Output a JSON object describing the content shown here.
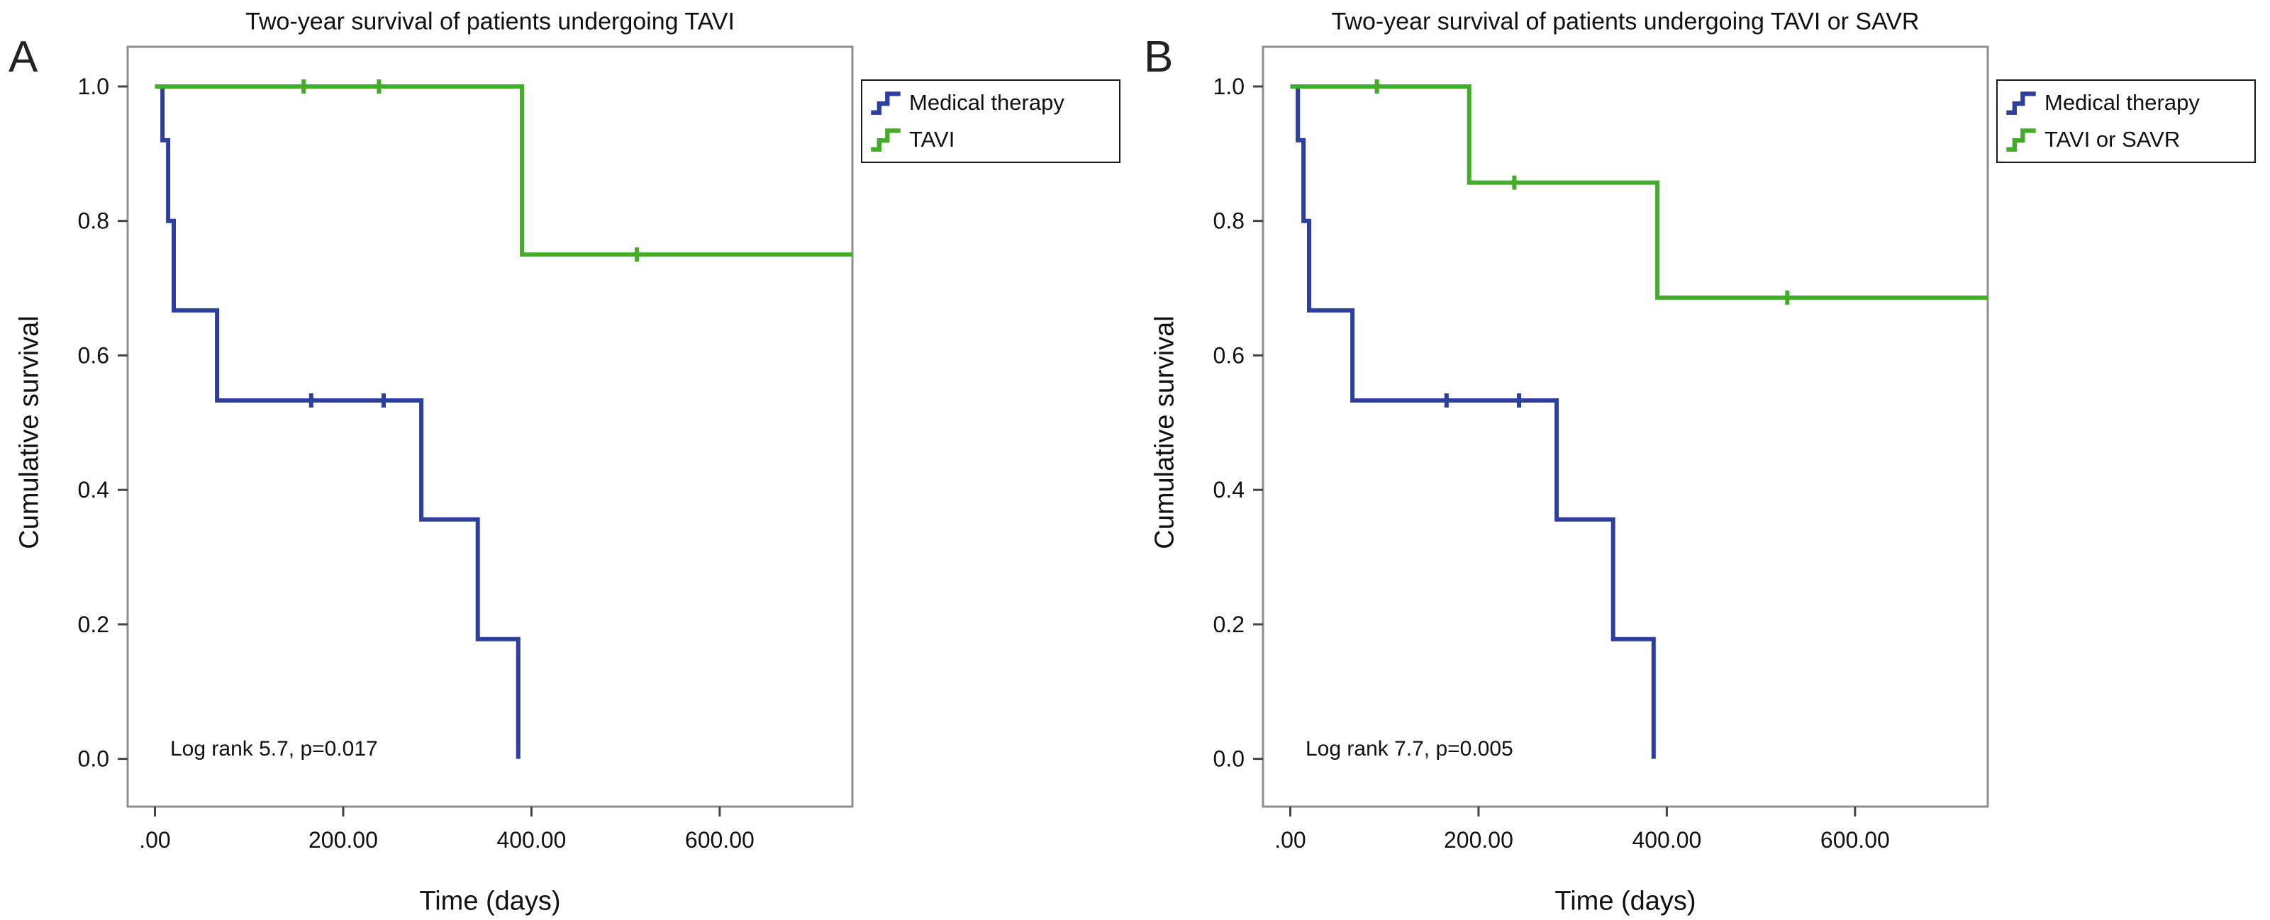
{
  "figure": {
    "panel_labels": [
      "A",
      "B"
    ]
  },
  "chart_data": [
    {
      "type": "line",
      "subtype": "kaplan-meier-step",
      "title": "Two-year survival of patients undergoing TAVI",
      "xlabel": "Time (days)",
      "ylabel": "Cumulative survival",
      "annotation": "Log rank 5.7, p=0.017",
      "xlim": [
        -29,
        741
      ],
      "ylim": [
        -0.071,
        1.059
      ],
      "xticks": [
        0,
        200,
        400,
        600
      ],
      "xtick_labels": [
        ".00",
        "200.00",
        "400.00",
        "600.00"
      ],
      "yticks": [
        0.0,
        0.2,
        0.4,
        0.6,
        0.8,
        1.0
      ],
      "ytick_labels": [
        "0.0",
        "0.2",
        "0.4",
        "0.6",
        "0.8",
        "1.0"
      ],
      "grid": false,
      "legend_position": "outside-top-right",
      "series": [
        {
          "name": "Medical therapy",
          "color": "#2c3f9e",
          "points": [
            [
              0,
              1.0
            ],
            [
              8,
              1.0
            ],
            [
              8,
              0.92
            ],
            [
              14,
              0.92
            ],
            [
              14,
              0.8
            ],
            [
              20,
              0.8
            ],
            [
              20,
              0.667
            ],
            [
              66,
              0.667
            ],
            [
              66,
              0.533
            ],
            [
              283,
              0.533
            ],
            [
              283,
              0.356
            ],
            [
              343,
              0.356
            ],
            [
              343,
              0.178
            ],
            [
              386,
              0.178
            ],
            [
              386,
              0.0
            ]
          ],
          "censor_marks": [
            [
              166,
              0.533
            ],
            [
              243,
              0.533
            ]
          ]
        },
        {
          "name": "TAVI",
          "color": "#43ac28",
          "points": [
            [
              0,
              1.0
            ],
            [
              390,
              1.0
            ],
            [
              390,
              0.75
            ],
            [
              741,
              0.75
            ]
          ],
          "censor_marks": [
            [
              158,
              1.0
            ],
            [
              238,
              1.0
            ],
            [
              512,
              0.75
            ]
          ]
        }
      ]
    },
    {
      "type": "line",
      "subtype": "kaplan-meier-step",
      "title": "Two-year survival of patients undergoing TAVI or SAVR",
      "xlabel": "Time (days)",
      "ylabel": "Cumulative survival",
      "annotation": "Log rank 7.7, p=0.005",
      "xlim": [
        -29,
        741
      ],
      "ylim": [
        -0.071,
        1.059
      ],
      "xticks": [
        0,
        200,
        400,
        600
      ],
      "xtick_labels": [
        ".00",
        "200.00",
        "400.00",
        "600.00"
      ],
      "yticks": [
        0.0,
        0.2,
        0.4,
        0.6,
        0.8,
        1.0
      ],
      "ytick_labels": [
        "0.0",
        "0.2",
        "0.4",
        "0.6",
        "0.8",
        "1.0"
      ],
      "grid": false,
      "legend_position": "outside-top-right",
      "series": [
        {
          "name": "Medical therapy",
          "color": "#2c3f9e",
          "points": [
            [
              0,
              1.0
            ],
            [
              8,
              1.0
            ],
            [
              8,
              0.92
            ],
            [
              14,
              0.92
            ],
            [
              14,
              0.8
            ],
            [
              20,
              0.8
            ],
            [
              20,
              0.667
            ],
            [
              66,
              0.667
            ],
            [
              66,
              0.533
            ],
            [
              283,
              0.533
            ],
            [
              283,
              0.356
            ],
            [
              343,
              0.356
            ],
            [
              343,
              0.178
            ],
            [
              386,
              0.178
            ],
            [
              386,
              0.0
            ]
          ],
          "censor_marks": [
            [
              166,
              0.533
            ],
            [
              243,
              0.533
            ]
          ]
        },
        {
          "name": "TAVI or SAVR",
          "color": "#43ac28",
          "points": [
            [
              0,
              1.0
            ],
            [
              190,
              1.0
            ],
            [
              190,
              0.857
            ],
            [
              390,
              0.857
            ],
            [
              390,
              0.686
            ],
            [
              741,
              0.686
            ]
          ],
          "censor_marks": [
            [
              92,
              1.0
            ],
            [
              238,
              0.857
            ],
            [
              528,
              0.686
            ]
          ]
        }
      ]
    }
  ]
}
